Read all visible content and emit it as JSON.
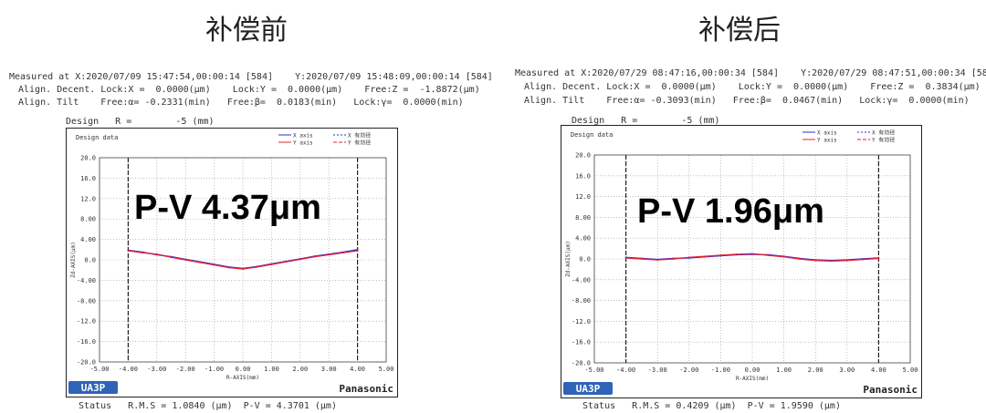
{
  "panels": [
    {
      "title": "补偿前",
      "measured": "Measured at X:2020/07/09 15:47:54,00:00:14 [584]    Y:2020/07/09 15:48:09,00:00:14 [584]",
      "decent": "Align. Decent. Lock:X =  0.0000(μm)    Lock:Y =  0.0000(μm)    Free:Z =  -1.8872(μm)",
      "tilt": "Align. Tilt    Free:α= -0.2331(min)   Free:β=  0.0183(min)   Lock:γ=  0.0000(min)",
      "design": "Design   R =        -5 (mm)",
      "status": "Status   R.M.S = 1.0840 (μm)  P-V = 4.3701 (μm)",
      "pv_label": "P-V 4.37μm"
    },
    {
      "title": "补偿后",
      "measured": "Measured at X:2020/07/29 08:47:16,00:00:34 [584]    Y:2020/07/29 08:47:51,00:00:34 [584]",
      "decent": "Align. Decent. Lock:X =  0.0000(μm)    Lock:Y =  0.0000(μm)    Free:Z =  0.3834(μm)",
      "tilt": "Align. Tilt    Free:α= -0.3093(min)   Free:β=  0.0467(min)   Lock:γ=  0.0000(min)",
      "design": "Design   R =        -5 (mm)",
      "status": "Status   R.M.S = 0.4209 (μm)  P-V = 1.9590 (μm)",
      "pv_label": "P-V 1.96μm"
    }
  ],
  "chart_data": [
    {
      "type": "line",
      "title": "Design data",
      "xlabel": "R-AXIS(mm)",
      "ylabel": "Zd-AXIS(μm)",
      "xlim": [
        -5,
        5
      ],
      "ylim": [
        -20,
        20
      ],
      "xticks": [
        "-5.00",
        "-4.00",
        "-3.00",
        "-2.00",
        "-1.00",
        "0.00",
        "1.00",
        "2.00",
        "3.00",
        "4.00",
        "5.00"
      ],
      "yticks": [
        "20.0",
        "16.0",
        "12.0",
        "8.00",
        "4.00",
        "0.0",
        "-4.00",
        "-8.00",
        "-12.0",
        "-16.0",
        "-20.0"
      ],
      "grid": true,
      "legend_position": "top-right",
      "legend": [
        "X axis",
        "X 有効径",
        "Y axis",
        "Y 有効径"
      ],
      "series": [
        {
          "name": "X axis",
          "color": "#2b2bd6",
          "x": [
            -4.0,
            -3.5,
            -3.0,
            -2.5,
            -2.0,
            -1.5,
            -1.0,
            -0.5,
            0.0,
            0.5,
            1.0,
            1.5,
            2.0,
            2.5,
            3.0,
            3.5,
            4.0
          ],
          "y": [
            1.9,
            1.5,
            1.0,
            0.6,
            0.1,
            -0.4,
            -0.9,
            -1.4,
            -1.7,
            -1.3,
            -0.8,
            -0.3,
            0.2,
            0.7,
            1.1,
            1.5,
            2.0
          ]
        },
        {
          "name": "Y axis",
          "color": "#e0203a",
          "x": [
            -4.0,
            -3.5,
            -3.0,
            -2.5,
            -2.0,
            -1.5,
            -1.0,
            -0.5,
            0.0,
            0.5,
            1.0,
            1.5,
            2.0,
            2.5,
            3.0,
            3.5,
            4.0
          ],
          "y": [
            1.8,
            1.4,
            1.1,
            0.5,
            0.0,
            -0.5,
            -1.0,
            -1.5,
            -1.8,
            -1.4,
            -0.9,
            -0.4,
            0.1,
            0.6,
            1.0,
            1.4,
            1.8
          ]
        }
      ],
      "effective_diameter": [
        -4.0,
        4.0
      ],
      "logo_left": "UA3P",
      "logo_right": "Panasonic"
    },
    {
      "type": "line",
      "title": "Design data",
      "xlabel": "R-AXIS(mm)",
      "ylabel": "Zd-AXIS(μm)",
      "xlim": [
        -5,
        5
      ],
      "ylim": [
        -20,
        20
      ],
      "xticks": [
        "-5.00",
        "-4.00",
        "-3.00",
        "-2.00",
        "-1.00",
        "0.00",
        "1.00",
        "2.00",
        "3.00",
        "4.00",
        "5.00"
      ],
      "yticks": [
        "20.0",
        "16.0",
        "12.0",
        "8.00",
        "4.00",
        "0.0",
        "-4.00",
        "-8.00",
        "-12.0",
        "-16.0",
        "-20.0"
      ],
      "grid": true,
      "legend_position": "top-right",
      "legend": [
        "X axis",
        "X 有効径",
        "Y axis",
        "Y 有効径"
      ],
      "series": [
        {
          "name": "X axis",
          "color": "#2b2bd6",
          "x": [
            -4.0,
            -3.5,
            -3.0,
            -2.5,
            -2.0,
            -1.5,
            -1.0,
            -0.5,
            0.0,
            0.5,
            1.0,
            1.5,
            2.0,
            2.5,
            3.0,
            3.5,
            4.0
          ],
          "y": [
            0.3,
            0.1,
            -0.1,
            0.1,
            0.2,
            0.4,
            0.6,
            0.8,
            0.9,
            0.8,
            0.5,
            0.1,
            -0.2,
            -0.3,
            -0.2,
            0.0,
            0.2
          ]
        },
        {
          "name": "Y axis",
          "color": "#e0203a",
          "x": [
            -4.0,
            -3.5,
            -3.0,
            -2.5,
            -2.0,
            -1.5,
            -1.0,
            -0.5,
            0.0,
            0.5,
            1.0,
            1.5,
            2.0,
            2.5,
            3.0,
            3.5,
            4.0
          ],
          "y": [
            0.2,
            0.0,
            -0.2,
            0.0,
            0.3,
            0.5,
            0.7,
            0.9,
            1.0,
            0.7,
            0.4,
            0.0,
            -0.3,
            -0.4,
            -0.3,
            -0.1,
            0.1
          ]
        }
      ],
      "effective_diameter": [
        -4.0,
        4.0
      ],
      "logo_left": "UA3P",
      "logo_right": "Panasonic"
    }
  ]
}
